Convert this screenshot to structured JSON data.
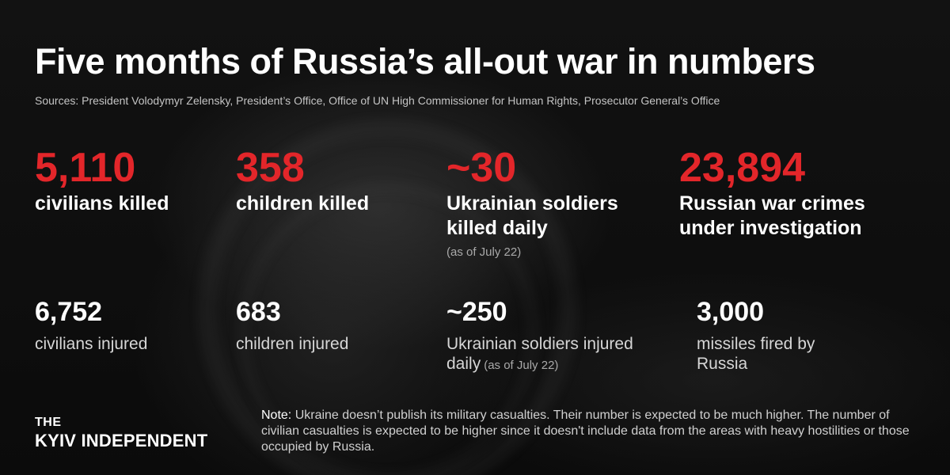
{
  "header": {
    "title": "Five months of Russia’s all-out war in numbers",
    "sources": "Sources: President Volodymyr Zelensky, President’s Office, Office of UN High Commissioner for Human Rights, Prosecutor General’s Office"
  },
  "top_stats": [
    {
      "value": "5,110",
      "label": "civilians killed",
      "note": ""
    },
    {
      "value": "358",
      "label": "children killed",
      "note": ""
    },
    {
      "value": "~30",
      "label": "Ukrainian soldiers killed daily",
      "note": "(as of July 22)"
    },
    {
      "value": "23,894",
      "label": "Russian war crimes under investigation",
      "note": ""
    }
  ],
  "bottom_stats": [
    {
      "value": "6,752",
      "label": "civilians injured",
      "note": ""
    },
    {
      "value": "683",
      "label": "children injured",
      "note": ""
    },
    {
      "value": "~250",
      "label": "Ukrainian soldiers injured daily",
      "note": "(as of July 22)"
    },
    {
      "value": "3,000",
      "label": "missiles fired by Russia",
      "note": ""
    }
  ],
  "logo": {
    "the": "THE",
    "name": "KYIV INDEPENDENT"
  },
  "note": {
    "lead": "Note:",
    "text": " Ukraine doesn’t publish its military casualties. Their number is expected to be much higher. The number of civilian casualties is expected to be higher since it doesn't include data from the areas with heavy hostilities or those occupied by Russia."
  },
  "colors": {
    "accent_red": "#e3262a",
    "background": "#0d0d0d",
    "text": "#ffffff"
  }
}
